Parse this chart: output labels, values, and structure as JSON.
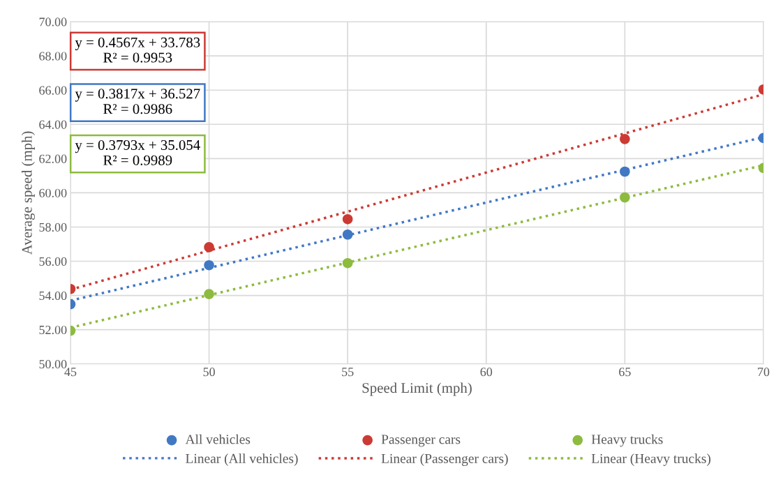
{
  "chart_data": {
    "type": "scatter",
    "xlabel": "Speed Limit (mph)",
    "ylabel": "Average speed (mph)",
    "xlim": [
      45,
      70
    ],
    "xticks": [
      45,
      50,
      55,
      60,
      65,
      70
    ],
    "ylim": [
      50,
      70
    ],
    "yticks": [
      {
        "value": 50,
        "label": "50.00"
      },
      {
        "value": 52,
        "label": "52.00"
      },
      {
        "value": 54,
        "label": "54.00"
      },
      {
        "value": 56,
        "label": "56.00"
      },
      {
        "value": 58,
        "label": "58.00"
      },
      {
        "value": 60,
        "label": "60.00"
      },
      {
        "value": 62,
        "label": "62.00"
      },
      {
        "value": 64,
        "label": "64.00"
      },
      {
        "value": 66,
        "label": "66.00"
      },
      {
        "value": 68,
        "label": "68.00"
      },
      {
        "value": 70,
        "label": "70.00"
      }
    ],
    "x": [
      45,
      50,
      55,
      65,
      70
    ],
    "grid": true,
    "legend": "bottom",
    "marker": "circle",
    "series": [
      {
        "name": "All vehicles",
        "color": "#4178c4",
        "values": [
          53.49,
          55.77,
          57.56,
          61.24,
          63.2
        ]
      },
      {
        "name": "Passenger cars",
        "color": "#cc3a34",
        "values": [
          54.38,
          56.82,
          58.46,
          63.14,
          66.04
        ]
      },
      {
        "name": "Heavy trucks",
        "color": "#8dbb3f",
        "values": [
          51.94,
          54.08,
          55.89,
          59.73,
          61.45
        ]
      },
      {
        "name": "Linear (All vehicles)",
        "type": "line",
        "marker": "none",
        "line_style": "dotted",
        "color": "#4178c4",
        "values": [
          53.7,
          55.61,
          57.52,
          61.34,
          63.25
        ]
      },
      {
        "name": "Linear (Passenger cars)",
        "type": "line",
        "marker": "none",
        "line_style": "dotted",
        "color": "#cc3a34",
        "values": [
          54.34,
          56.62,
          58.9,
          63.47,
          65.75
        ]
      },
      {
        "name": "Linear (Heavy trucks)",
        "type": "line",
        "marker": "none",
        "line_style": "dotted",
        "color": "#8dbb3f",
        "values": [
          52.12,
          54.02,
          55.92,
          59.71,
          61.61
        ]
      }
    ],
    "annotations": [
      "y = 0.4567x + 33.783\nR² = 0.9953",
      "y = 0.3817x + 36.527\nR² = 0.9986",
      "y = 0.3793x + 35.054\nR² = 0.9989"
    ]
  }
}
